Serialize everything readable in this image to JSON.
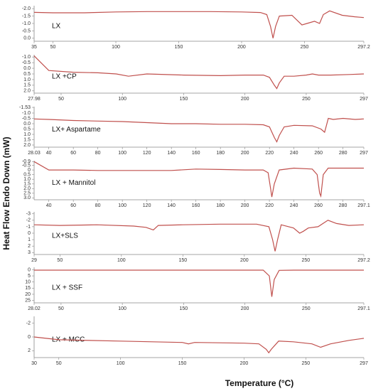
{
  "y_label": "Heat Flow Endo Down (mW)",
  "x_label": "Temperature (°C)",
  "chart_data": [
    {
      "type": "line",
      "title": "LX",
      "color": "#c0504d",
      "x": [
        35,
        50,
        75,
        100,
        125,
        150,
        175,
        200,
        215,
        220,
        223,
        225,
        227,
        230,
        240,
        248,
        252,
        258,
        262,
        265,
        270,
        280,
        290,
        297.2
      ],
      "values": [
        -1.75,
        -1.72,
        -1.72,
        -1.78,
        -1.8,
        -1.8,
        -1.8,
        -1.78,
        -1.74,
        -1.6,
        -0.8,
        0.0,
        -0.8,
        -1.5,
        -1.55,
        -0.9,
        -1.0,
        -1.15,
        -1.0,
        -1.6,
        -1.85,
        -1.55,
        -1.45,
        -1.4
      ],
      "xlim": [
        35,
        297.2
      ],
      "xticks": [
        35,
        50,
        100,
        150,
        200,
        250,
        297.2
      ],
      "ylim": [
        0.2,
        -2.2
      ],
      "yticks": [
        {
          "value": -2,
          "label": "-2.0"
        },
        -1.5,
        {
          "value": -1,
          "label": "-1.0"
        },
        -0.5,
        {
          "value": 0,
          "label": "0.0"
        }
      ]
    },
    {
      "type": "line",
      "title": "LX +CP",
      "color": "#c0504d",
      "x": [
        27.98,
        40,
        60,
        80,
        95,
        105,
        120,
        150,
        180,
        200,
        215,
        220,
        224,
        226,
        228,
        232,
        240,
        250,
        255,
        260,
        270,
        285,
        297
      ],
      "values": [
        -1.1,
        0.2,
        0.35,
        0.4,
        0.5,
        0.7,
        0.5,
        0.6,
        0.65,
        0.6,
        0.6,
        0.8,
        1.5,
        1.8,
        1.3,
        0.7,
        0.7,
        0.6,
        0.5,
        0.6,
        0.6,
        0.55,
        0.5
      ],
      "xlim": [
        27.98,
        297
      ],
      "xticks": [
        27.98,
        50,
        100,
        150,
        200,
        250,
        297
      ],
      "ylim": [
        2.2,
        -1.2
      ],
      "yticks": [
        {
          "value": -1,
          "label": "-1.0"
        },
        -0.5,
        {
          "value": 0,
          "label": "0.0"
        },
        0.5,
        {
          "value": 1,
          "label": "1.0"
        },
        1.5,
        {
          "value": 2,
          "label": "2.0"
        }
      ]
    },
    {
      "type": "line",
      "title": "LX+ Aspartame",
      "color": "#c0504d",
      "x": [
        28.03,
        40,
        60,
        80,
        100,
        120,
        140,
        160,
        180,
        200,
        215,
        220,
        224,
        226,
        228,
        232,
        240,
        255,
        262,
        265,
        268,
        272,
        280,
        290,
        297
      ],
      "values": [
        -0.45,
        -0.4,
        -0.3,
        -0.25,
        -0.2,
        -0.1,
        0.0,
        0.0,
        0.05,
        0.05,
        0.1,
        0.3,
        1.3,
        1.7,
        1.1,
        0.3,
        0.15,
        0.2,
        0.5,
        0.8,
        -0.5,
        -0.4,
        -0.5,
        -0.4,
        -0.45
      ],
      "xlim": [
        28.03,
        297
      ],
      "xticks": [
        28.03,
        40,
        60,
        80,
        100,
        120,
        140,
        160,
        180,
        200,
        220,
        240,
        260,
        280,
        297
      ],
      "ylim": [
        2.2,
        -1.6
      ],
      "yticks": [
        -1.53,
        {
          "value": -1,
          "label": "-1.0"
        },
        -0.5,
        {
          "value": 0,
          "label": "0.0"
        },
        0.5,
        {
          "value": 1,
          "label": "1.0"
        },
        1.5,
        {
          "value": 2,
          "label": "2.0"
        }
      ]
    },
    {
      "type": "line",
      "title": "LX + Mannitol",
      "color": "#c0504d",
      "x": [
        28,
        40,
        60,
        80,
        100,
        120,
        140,
        160,
        180,
        200,
        215,
        219,
        221,
        222,
        224,
        228,
        240,
        255,
        259,
        261,
        262,
        264,
        268,
        280,
        297.1
      ],
      "values": [
        -0.9,
        0.0,
        0.0,
        0.05,
        0.05,
        0.05,
        0.05,
        -0.1,
        -0.05,
        0.0,
        0.0,
        0.3,
        2.0,
        2.9,
        1.5,
        0.0,
        -0.2,
        -0.1,
        0.5,
        2.5,
        2.8,
        0.5,
        -0.2,
        -0.2,
        -0.2
      ],
      "xlim": [
        28,
        297.1
      ],
      "xticks": [
        40,
        60,
        80,
        100,
        120,
        140,
        160,
        180,
        200,
        220,
        240,
        260,
        280,
        297.1
      ],
      "ylim": [
        3.2,
        -1.0
      ],
      "yticks": [
        -0.9,
        -0.5,
        0,
        0.5,
        {
          "value": 1,
          "label": "1.0"
        },
        1.5,
        {
          "value": 2,
          "label": "2.0"
        },
        2.5,
        {
          "value": 3,
          "label": "3.0"
        }
      ]
    },
    {
      "type": "line",
      "title": "LX+SLS",
      "color": "#c0504d",
      "x": [
        29,
        50,
        80,
        110,
        120,
        126,
        130,
        150,
        180,
        210,
        220,
        223,
        225,
        227,
        230,
        240,
        245,
        248,
        252,
        260,
        268,
        275,
        285,
        297.2
      ],
      "values": [
        -1.3,
        -1.2,
        -1.3,
        -1.1,
        -0.9,
        -0.5,
        -1.2,
        -1.3,
        -1.4,
        -1.4,
        -1.0,
        1.0,
        2.8,
        1.0,
        -1.3,
        -0.8,
        0.0,
        -0.3,
        -0.8,
        -1.0,
        -2.0,
        -1.5,
        -1.2,
        -1.3
      ],
      "xlim": [
        29,
        297.2
      ],
      "xticks": [
        29,
        50,
        100,
        150,
        200,
        250,
        297.2
      ],
      "ylim": [
        3.3,
        -3.3
      ],
      "yticks": [
        -3,
        -2,
        -1,
        0,
        1,
        2,
        3
      ]
    },
    {
      "type": "line",
      "title": "LX + SSF",
      "color": "#c0504d",
      "x": [
        28.02,
        50,
        100,
        150,
        200,
        215,
        220,
        222,
        224,
        228,
        240,
        260,
        297.1
      ],
      "values": [
        0.3,
        0.3,
        0.3,
        0.3,
        0.3,
        0.3,
        5,
        22,
        8,
        0.5,
        0.3,
        0.3,
        0.3
      ],
      "xlim": [
        28.02,
        297.1
      ],
      "xticks": [
        28.02,
        50,
        100,
        150,
        200,
        250,
        297.1
      ],
      "ylim": [
        27,
        -2
      ],
      "yticks": [
        0,
        5,
        10,
        15,
        20,
        25
      ]
    },
    {
      "type": "line",
      "title": "LX + MCC",
      "color": "#c0504d",
      "x": [
        30,
        50,
        100,
        150,
        155,
        160,
        200,
        212,
        218,
        220,
        222,
        228,
        240,
        255,
        262,
        270,
        285,
        297
      ],
      "values": [
        0.0,
        0.4,
        0.6,
        0.8,
        1.0,
        0.8,
        0.9,
        1.0,
        1.8,
        2.3,
        1.8,
        0.6,
        0.7,
        1.0,
        1.5,
        1.0,
        0.5,
        0.2
      ],
      "xlim": [
        30,
        297
      ],
      "xticks": [
        30,
        50,
        100,
        150,
        200,
        250,
        297
      ],
      "ylim": [
        3,
        -3
      ],
      "yticks": [
        -2,
        0,
        2
      ]
    }
  ]
}
